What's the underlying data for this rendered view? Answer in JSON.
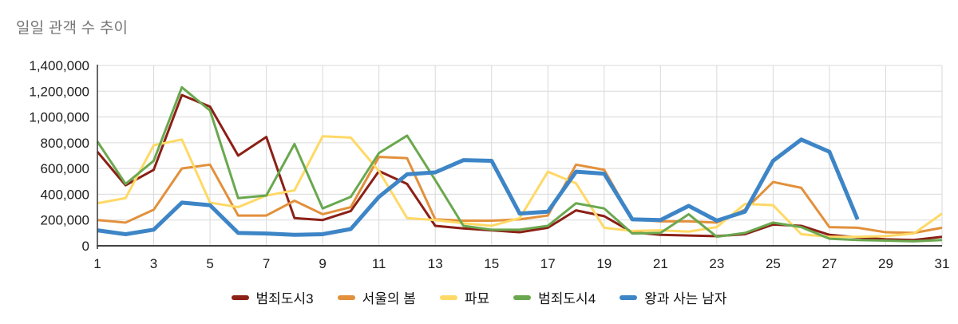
{
  "chart": {
    "title": "일일 관객 수 추이",
    "title_color": "#757575"
  },
  "chart_data": {
    "type": "line",
    "title": "일일 관객 수 추이",
    "xlabel": "",
    "ylabel": "",
    "x": [
      1,
      2,
      3,
      4,
      5,
      6,
      7,
      8,
      9,
      10,
      11,
      12,
      13,
      14,
      15,
      16,
      17,
      18,
      19,
      20,
      21,
      22,
      23,
      24,
      25,
      26,
      27,
      28,
      29,
      30,
      31
    ],
    "x_tick_labels": [
      "1",
      "3",
      "5",
      "7",
      "9",
      "11",
      "13",
      "15",
      "17",
      "19",
      "21",
      "23",
      "25",
      "27",
      "29",
      "31"
    ],
    "y_tick_labels": [
      "0",
      "200,000",
      "400,000",
      "600,000",
      "800,000",
      "1,000,000",
      "1,200,000",
      "1,400,000"
    ],
    "ylim": [
      0,
      1400000
    ],
    "y_tick_step": 200000,
    "grid": true,
    "legend_position": "bottom",
    "grid_color": "#d9d9d9",
    "axis_color": "#424242",
    "series": [
      {
        "name": "범죄도시3",
        "color": "#8B2016",
        "line_width": 3,
        "values": [
          730000,
          470000,
          590000,
          1170000,
          1080000,
          700000,
          845000,
          215000,
          200000,
          270000,
          580000,
          480000,
          155000,
          135000,
          120000,
          105000,
          140000,
          275000,
          230000,
          105000,
          85000,
          80000,
          75000,
          90000,
          165000,
          155000,
          85000,
          65000,
          50000,
          45000,
          70000
        ]
      },
      {
        "name": "서울의 봄",
        "color": "#E2903B",
        "line_width": 3,
        "values": [
          200000,
          180000,
          280000,
          600000,
          630000,
          235000,
          235000,
          350000,
          245000,
          300000,
          690000,
          680000,
          205000,
          195000,
          195000,
          205000,
          235000,
          630000,
          590000,
          205000,
          190000,
          190000,
          180000,
          280000,
          495000,
          450000,
          145000,
          140000,
          105000,
          100000,
          140000
        ]
      },
      {
        "name": "파묘",
        "color": "#FFD966",
        "line_width": 3,
        "values": [
          330000,
          370000,
          780000,
          825000,
          335000,
          300000,
          390000,
          430000,
          850000,
          840000,
          580000,
          215000,
          200000,
          175000,
          155000,
          215000,
          575000,
          485000,
          140000,
          115000,
          120000,
          110000,
          145000,
          325000,
          315000,
          90000,
          70000,
          70000,
          75000,
          95000,
          250000
        ]
      },
      {
        "name": "범죄도시4",
        "color": "#6AA84F",
        "line_width": 3,
        "values": [
          810000,
          480000,
          660000,
          1230000,
          1050000,
          370000,
          390000,
          790000,
          290000,
          380000,
          720000,
          855000,
          510000,
          155000,
          125000,
          125000,
          155000,
          330000,
          290000,
          95000,
          100000,
          245000,
          70000,
          100000,
          180000,
          145000,
          55000,
          45000,
          40000,
          35000,
          45000
        ]
      },
      {
        "name": "왕과 사는 남자",
        "color": "#3D85C6",
        "line_width": 5,
        "values": [
          120000,
          90000,
          125000,
          335000,
          315000,
          100000,
          95000,
          85000,
          90000,
          130000,
          380000,
          555000,
          570000,
          665000,
          660000,
          250000,
          265000,
          575000,
          560000,
          205000,
          200000,
          310000,
          195000,
          265000,
          660000,
          825000,
          730000,
          205000,
          null,
          null,
          null
        ]
      }
    ]
  }
}
